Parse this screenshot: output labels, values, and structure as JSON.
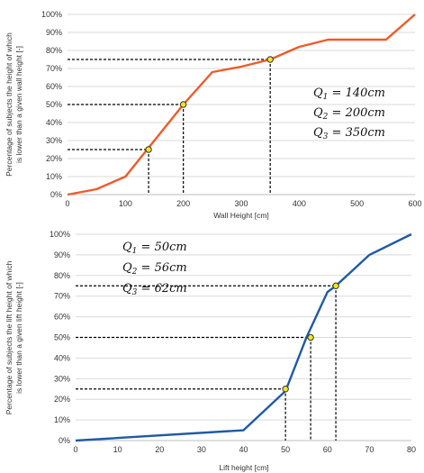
{
  "chart_data": [
    {
      "type": "line",
      "xlabel": "Wall Height [cm]",
      "ylabel_lines": [
        "Percentage of subjects the height of which",
        "is lower than a given wall height [-]"
      ],
      "xlim": [
        0,
        600
      ],
      "ylim": [
        0,
        100
      ],
      "x_ticks": [
        "0",
        "100",
        "200",
        "300",
        "400",
        "500",
        "600"
      ],
      "y_ticks": [
        "0%",
        "10%",
        "20%",
        "30%",
        "40%",
        "50%",
        "60%",
        "70%",
        "80%",
        "90%",
        "100%"
      ],
      "grid": "horizontal",
      "line_color": "#f05a28",
      "series": [
        {
          "x": [
            0,
            50,
            100,
            150,
            200,
            250,
            300,
            350,
            400,
            450,
            500,
            550,
            600
          ],
          "y": [
            0,
            3,
            10,
            30,
            50,
            68,
            71,
            75,
            82,
            86,
            86,
            86,
            100
          ]
        }
      ],
      "quartiles": [
        {
          "x": 140,
          "y": 25
        },
        {
          "x": 200,
          "y": 50
        },
        {
          "x": 350,
          "y": 75
        }
      ],
      "annotations": [
        "Q1 = 140cm",
        "Q2 = 200cm",
        "Q3 = 350cm"
      ],
      "annotation_position": "right"
    },
    {
      "type": "line",
      "xlabel": "Lift height [cm]",
      "ylabel_lines": [
        "Percentage of subjects the lift height of which",
        "is lower than a given lift height [-]"
      ],
      "xlim": [
        0,
        80
      ],
      "ylim": [
        0,
        100
      ],
      "x_ticks": [
        "0",
        "10",
        "20",
        "30",
        "40",
        "50",
        "60",
        "70",
        "80"
      ],
      "y_ticks": [
        "0%",
        "10%",
        "20%",
        "30%",
        "40%",
        "50%",
        "60%",
        "70%",
        "80%",
        "90%",
        "100%"
      ],
      "grid": "horizontal",
      "line_color": "#1f5aa6",
      "series": [
        {
          "x": [
            0,
            40,
            50,
            55,
            60,
            62,
            70,
            80
          ],
          "y": [
            0,
            5,
            24,
            50,
            72,
            75,
            90,
            100
          ]
        }
      ],
      "quartiles": [
        {
          "x": 50,
          "y": 25
        },
        {
          "x": 56,
          "y": 50
        },
        {
          "x": 62,
          "y": 75
        }
      ],
      "annotations": [
        "Q1 = 50cm",
        "Q2 = 56cm",
        "Q3 = 62cm"
      ],
      "annotation_position": "top-left"
    }
  ]
}
